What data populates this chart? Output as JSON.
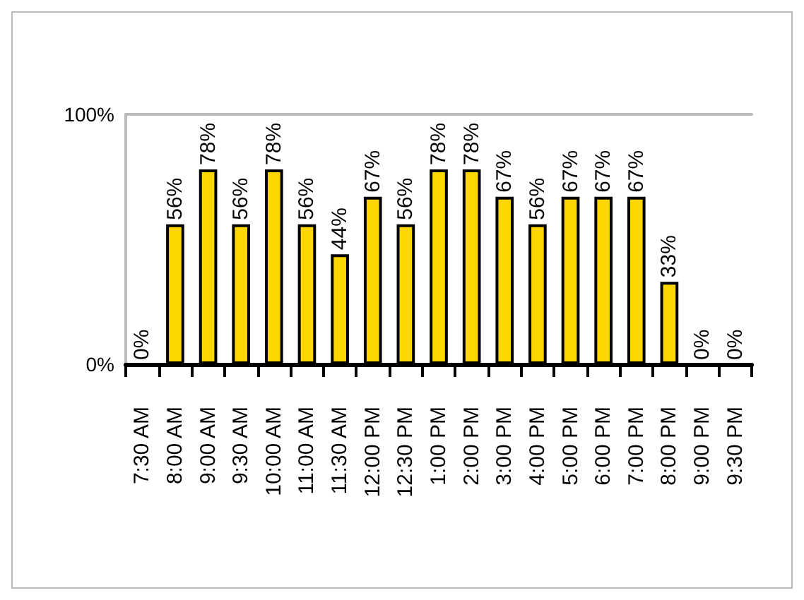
{
  "chart_data": {
    "type": "bar",
    "categories": [
      "7:30 AM",
      "8:00 AM",
      "9:00 AM",
      "9:30 AM",
      "10:00 AM",
      "11:00 AM",
      "11:30 AM",
      "12:00 PM",
      "12:30 PM",
      "1:00 PM",
      "2:00 PM",
      "3:00 PM",
      "4:00 PM",
      "5:00 PM",
      "6:00 PM",
      "7:00 PM",
      "8:00 PM",
      "9:00 PM",
      "9:30 PM"
    ],
    "values": [
      0,
      56,
      78,
      56,
      78,
      56,
      44,
      67,
      56,
      78,
      78,
      67,
      56,
      67,
      67,
      67,
      33,
      0,
      0
    ],
    "value_labels": [
      "0%",
      "56%",
      "78%",
      "56%",
      "78%",
      "56%",
      "44%",
      "67%",
      "56%",
      "78%",
      "78%",
      "67%",
      "56%",
      "67%",
      "67%",
      "67%",
      "33%",
      "0%",
      "0%"
    ],
    "color": "#ffd700",
    "ylim": [
      0,
      100
    ],
    "yticks": [
      {
        "value": 0,
        "label": "0%"
      },
      {
        "value": 100,
        "label": "100%"
      }
    ],
    "grid": false
  }
}
